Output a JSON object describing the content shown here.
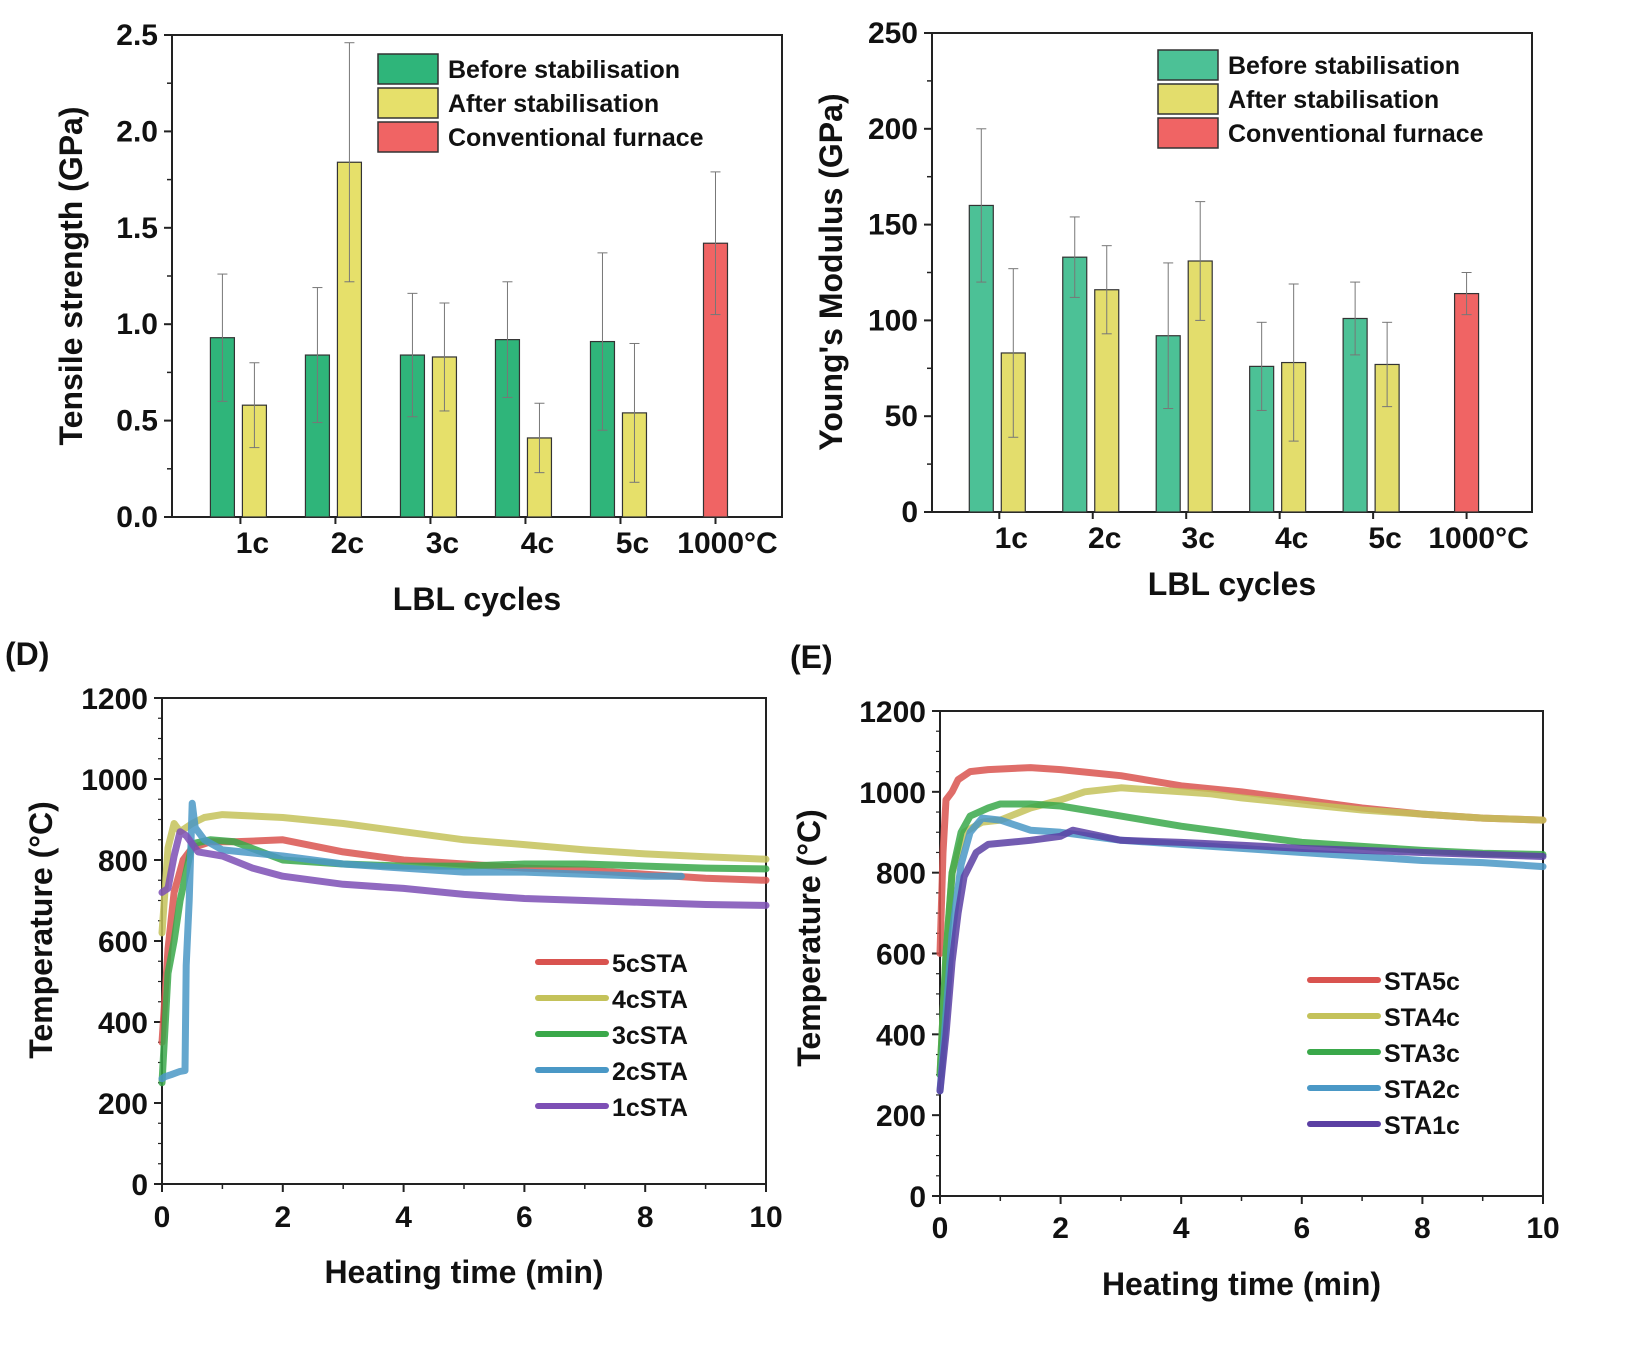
{
  "chart_data": [
    {
      "type": "bar",
      "panel_label": "",
      "ylabel": "Tensile strength (GPa)",
      "xlabel": "LBL cycles",
      "ylim": [
        0,
        2.5
      ],
      "yticks": [
        "0.0",
        "0.5",
        "1.0",
        "1.5",
        "2.0",
        "2.5"
      ],
      "ytick_values": [
        0,
        0.5,
        1.0,
        1.5,
        2.0,
        2.5
      ],
      "categories": [
        "1c",
        "2c",
        "3c",
        "4c",
        "5c",
        "1000°C"
      ],
      "legend_position": "top-right",
      "series": [
        {
          "name": "Before stabilisation",
          "color": "#2fb57a",
          "values": [
            0.93,
            0.84,
            0.84,
            0.92,
            0.91,
            null
          ],
          "errors": [
            0.33,
            0.35,
            0.32,
            0.3,
            0.46,
            null
          ]
        },
        {
          "name": "After stabilisation",
          "color": "#e6e06a",
          "values": [
            0.58,
            1.84,
            0.83,
            0.41,
            0.54,
            null
          ],
          "errors": [
            0.22,
            0.62,
            0.28,
            0.18,
            0.36,
            null
          ]
        },
        {
          "name": "Conventional furnace",
          "color": "#f06464",
          "values": [
            null,
            null,
            null,
            null,
            null,
            1.42
          ],
          "errors": [
            null,
            null,
            null,
            null,
            null,
            0.37
          ]
        }
      ]
    },
    {
      "type": "bar",
      "panel_label": "",
      "ylabel": "Young's Modulus (GPa)",
      "xlabel": "LBL cycles",
      "ylim": [
        0,
        250
      ],
      "yticks": [
        "0",
        "50",
        "100",
        "150",
        "200",
        "250"
      ],
      "ytick_values": [
        0,
        50,
        100,
        150,
        200,
        250
      ],
      "categories": [
        "1c",
        "2c",
        "3c",
        "4c",
        "5c",
        "1000°C"
      ],
      "legend_position": "top-right",
      "series": [
        {
          "name": "Before stabilisation",
          "color": "#4cc196",
          "values": [
            160,
            133,
            92,
            76,
            101,
            null
          ],
          "errors": [
            40,
            21,
            38,
            23,
            19,
            null
          ]
        },
        {
          "name": "After stabilisation",
          "color": "#e3dd6c",
          "values": [
            83,
            116,
            131,
            78,
            77,
            null
          ],
          "errors": [
            44,
            23,
            31,
            41,
            22,
            null
          ]
        },
        {
          "name": "Conventional furnace",
          "color": "#f06464",
          "values": [
            null,
            null,
            null,
            null,
            null,
            114
          ],
          "errors": [
            null,
            null,
            null,
            null,
            null,
            11
          ]
        }
      ]
    },
    {
      "type": "line",
      "panel_label": "(D)",
      "ylabel": "Temperature (°C)",
      "xlabel": "Heating time (min)",
      "xlim": [
        0,
        10
      ],
      "ylim": [
        0,
        1200
      ],
      "xticks": [
        "0",
        "2",
        "4",
        "6",
        "8",
        "10"
      ],
      "xtick_values": [
        0,
        2,
        4,
        6,
        8,
        10
      ],
      "yticks": [
        "0",
        "200",
        "400",
        "600",
        "800",
        "1000",
        "1200"
      ],
      "ytick_values": [
        0,
        200,
        400,
        600,
        800,
        1000,
        1200
      ],
      "legend_position": "lower-right",
      "series": [
        {
          "name": "5cSTA",
          "color": "#d9534f",
          "points": [
            [
              0,
              350
            ],
            [
              0.1,
              580
            ],
            [
              0.2,
              720
            ],
            [
              0.35,
              800
            ],
            [
              0.5,
              830
            ],
            [
              0.8,
              845
            ],
            [
              1.2,
              845
            ],
            [
              2,
              850
            ],
            [
              3,
              820
            ],
            [
              4,
              800
            ],
            [
              5,
              790
            ],
            [
              6,
              780
            ],
            [
              7,
              775
            ],
            [
              8,
              765
            ],
            [
              9,
              755
            ],
            [
              10,
              750
            ]
          ]
        },
        {
          "name": "4cSTA",
          "color": "#c4c25a",
          "points": [
            [
              0,
              620
            ],
            [
              0.1,
              830
            ],
            [
              0.2,
              890
            ],
            [
              0.3,
              870
            ],
            [
              0.5,
              890
            ],
            [
              0.7,
              905
            ],
            [
              1,
              912
            ],
            [
              2,
              905
            ],
            [
              3,
              890
            ],
            [
              4,
              870
            ],
            [
              5,
              850
            ],
            [
              6,
              838
            ],
            [
              7,
              825
            ],
            [
              8,
              815
            ],
            [
              9,
              808
            ],
            [
              10,
              802
            ]
          ]
        },
        {
          "name": "3cSTA",
          "color": "#3aa84a",
          "points": [
            [
              0,
              250
            ],
            [
              0.1,
              520
            ],
            [
              0.2,
              600
            ],
            [
              0.3,
              700
            ],
            [
              0.5,
              840
            ],
            [
              0.8,
              850
            ],
            [
              1.2,
              845
            ],
            [
              2,
              800
            ],
            [
              3,
              790
            ],
            [
              4,
              785
            ],
            [
              5,
              785
            ],
            [
              6,
              790
            ],
            [
              7,
              790
            ],
            [
              8,
              785
            ],
            [
              9,
              780
            ],
            [
              10,
              778
            ]
          ]
        },
        {
          "name": "2cSTA",
          "color": "#4a98c6",
          "points": [
            [
              0,
              260
            ],
            [
              0.05,
              265
            ],
            [
              0.15,
              270
            ],
            [
              0.3,
              278
            ],
            [
              0.38,
              280
            ],
            [
              0.4,
              540
            ],
            [
              0.45,
              700
            ],
            [
              0.5,
              940
            ],
            [
              0.55,
              880
            ],
            [
              0.7,
              850
            ],
            [
              1,
              825
            ],
            [
              2,
              810
            ],
            [
              3,
              790
            ],
            [
              4,
              780
            ],
            [
              5,
              770
            ],
            [
              6,
              770
            ],
            [
              7,
              765
            ],
            [
              8,
              760
            ],
            [
              8.6,
              760
            ]
          ]
        },
        {
          "name": "1cSTA",
          "color": "#7d4fb5",
          "points": [
            [
              0,
              720
            ],
            [
              0.1,
              730
            ],
            [
              0.2,
              810
            ],
            [
              0.3,
              870
            ],
            [
              0.4,
              860
            ],
            [
              0.6,
              820
            ],
            [
              1,
              810
            ],
            [
              1.5,
              780
            ],
            [
              2,
              760
            ],
            [
              3,
              740
            ],
            [
              4,
              730
            ],
            [
              5,
              715
            ],
            [
              6,
              705
            ],
            [
              7,
              700
            ],
            [
              8,
              695
            ],
            [
              9,
              690
            ],
            [
              10,
              688
            ]
          ]
        }
      ]
    },
    {
      "type": "line",
      "panel_label": "(E)",
      "ylabel": "Temperature (°C)",
      "xlabel": "Heating time (min)",
      "xlim": [
        0,
        10
      ],
      "ylim": [
        0,
        1200
      ],
      "xticks": [
        "0",
        "2",
        "4",
        "6",
        "8",
        "10"
      ],
      "xtick_values": [
        0,
        2,
        4,
        6,
        8,
        10
      ],
      "yticks": [
        "0",
        "200",
        "400",
        "600",
        "800",
        "1000",
        "1200"
      ],
      "ytick_values": [
        0,
        200,
        400,
        600,
        800,
        1000,
        1200
      ],
      "legend_position": "lower-right",
      "series": [
        {
          "name": "STA5c",
          "color": "#d9534f",
          "points": [
            [
              0,
              600
            ],
            [
              0.05,
              850
            ],
            [
              0.1,
              980
            ],
            [
              0.2,
              1000
            ],
            [
              0.3,
              1030
            ],
            [
              0.5,
              1050
            ],
            [
              0.8,
              1055
            ],
            [
              1.5,
              1060
            ],
            [
              2,
              1055
            ],
            [
              3,
              1040
            ],
            [
              4,
              1015
            ],
            [
              5,
              1000
            ],
            [
              6,
              980
            ],
            [
              7,
              960
            ],
            [
              8,
              945
            ],
            [
              9,
              935
            ],
            [
              10,
              930
            ]
          ]
        },
        {
          "name": "STA4c",
          "color": "#c4c25a",
          "points": [
            [
              0,
              300
            ],
            [
              0.1,
              600
            ],
            [
              0.2,
              800
            ],
            [
              0.4,
              900
            ],
            [
              0.7,
              925
            ],
            [
              1,
              930
            ],
            [
              1.5,
              960
            ],
            [
              2,
              980
            ],
            [
              2.4,
              1000
            ],
            [
              3,
              1010
            ],
            [
              3.5,
              1005
            ],
            [
              4,
              1000
            ],
            [
              4.5,
              995
            ],
            [
              5,
              985
            ],
            [
              6,
              970
            ],
            [
              7,
              955
            ],
            [
              8,
              945
            ],
            [
              9,
              935
            ],
            [
              10,
              930
            ]
          ]
        },
        {
          "name": "STA3c",
          "color": "#3aa84a",
          "points": [
            [
              0,
              300
            ],
            [
              0.1,
              600
            ],
            [
              0.2,
              800
            ],
            [
              0.35,
              900
            ],
            [
              0.5,
              940
            ],
            [
              0.8,
              960
            ],
            [
              1,
              970
            ],
            [
              1.5,
              970
            ],
            [
              2,
              965
            ],
            [
              3,
              940
            ],
            [
              4,
              915
            ],
            [
              5,
              895
            ],
            [
              6,
              875
            ],
            [
              7,
              865
            ],
            [
              8,
              855
            ],
            [
              9,
              848
            ],
            [
              10,
              845
            ]
          ]
        },
        {
          "name": "STA2c",
          "color": "#4a98c6",
          "points": [
            [
              0,
              260
            ],
            [
              0.1,
              450
            ],
            [
              0.2,
              650
            ],
            [
              0.35,
              820
            ],
            [
              0.5,
              900
            ],
            [
              0.7,
              935
            ],
            [
              1,
              930
            ],
            [
              1.5,
              905
            ],
            [
              2,
              900
            ],
            [
              3,
              880
            ],
            [
              4,
              870
            ],
            [
              5,
              860
            ],
            [
              6,
              850
            ],
            [
              7,
              840
            ],
            [
              8,
              830
            ],
            [
              9,
              825
            ],
            [
              10,
              815
            ]
          ]
        },
        {
          "name": "STA1c",
          "color": "#5b3fa3",
          "points": [
            [
              0,
              260
            ],
            [
              0.1,
              400
            ],
            [
              0.2,
              580
            ],
            [
              0.3,
              700
            ],
            [
              0.4,
              790
            ],
            [
              0.6,
              850
            ],
            [
              0.8,
              870
            ],
            [
              1.5,
              880
            ],
            [
              2,
              890
            ],
            [
              2.2,
              905
            ],
            [
              3,
              880
            ],
            [
              4,
              875
            ],
            [
              5,
              868
            ],
            [
              6,
              860
            ],
            [
              7,
              855
            ],
            [
              8,
              850
            ],
            [
              9,
              845
            ],
            [
              10,
              840
            ]
          ]
        }
      ]
    }
  ]
}
